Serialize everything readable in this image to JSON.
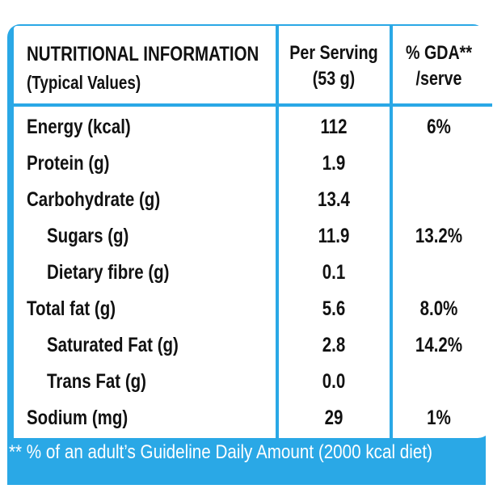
{
  "header": {
    "title": "NUTRITIONAL INFORMATION",
    "subtitle": "(Typical Values)",
    "serving_line1": "Per Serving",
    "serving_line2": "(53 g)",
    "gda_line1": "% GDA**",
    "gda_line2": "/serve"
  },
  "rows": [
    {
      "label": "Energy (kcal)",
      "serving": "112",
      "gda": "6%"
    },
    {
      "label": "Protein (g)",
      "serving": "1.9",
      "gda": ""
    },
    {
      "label": "Carbohydrate (g)",
      "serving": "13.4",
      "gda": ""
    },
    {
      "label": "Sugars (g)",
      "serving": "11.9",
      "gda": "13.2%"
    },
    {
      "label": "Dietary fibre (g)",
      "serving": "0.1",
      "gda": ""
    },
    {
      "label": "Total fat (g)",
      "serving": "5.6",
      "gda": "8.0%"
    },
    {
      "label": "Saturated Fat (g)",
      "serving": "2.8",
      "gda": "14.2%"
    },
    {
      "label": "Trans Fat (g)",
      "serving": "0.0",
      "gda": ""
    },
    {
      "label": "Sodium (mg)",
      "serving": "29",
      "gda": "1%"
    }
  ],
  "footnote": "** % of an adult’s Guideline Daily Amount (2000 kcal diet)",
  "colors": {
    "accent": "#2aa8e6",
    "text": "#111111",
    "background": "#ffffff"
  }
}
